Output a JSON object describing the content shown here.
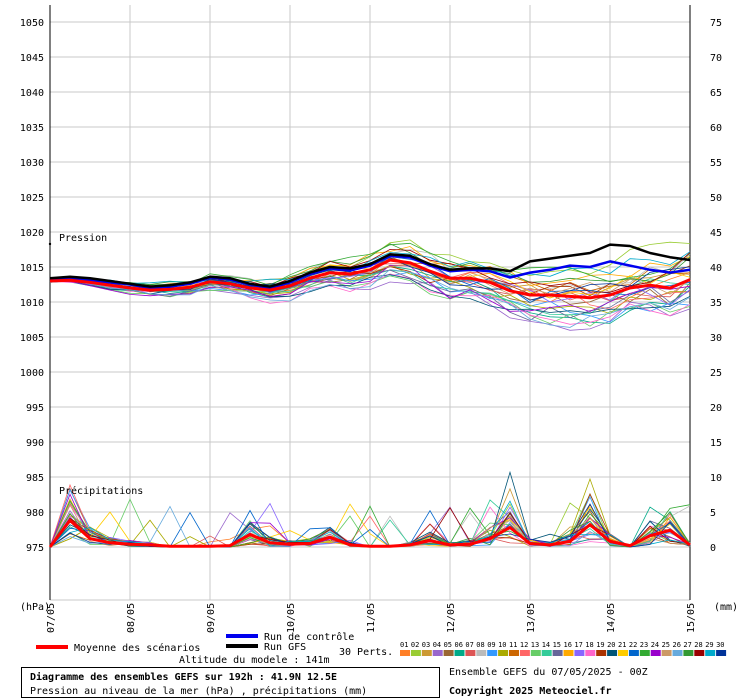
{
  "chart_data": {
    "type": "line",
    "left_axis": {
      "unit": "(hPa)",
      "ticks": [
        975,
        980,
        985,
        990,
        995,
        1000,
        1005,
        1010,
        1015,
        1020,
        1025,
        1030,
        1035,
        1040,
        1045,
        1050
      ],
      "range": [
        975,
        1050
      ]
    },
    "right_axis": {
      "unit": "(mm)",
      "ticks": [
        0,
        5,
        10,
        15,
        20,
        25,
        30,
        35,
        40,
        45,
        50,
        55,
        60,
        65,
        70,
        75
      ],
      "range": [
        0,
        75
      ]
    },
    "x_labels": [
      "07/05",
      "08/05",
      "09/05",
      "10/05",
      "11/05",
      "12/05",
      "13/05",
      "14/05",
      "15/05"
    ],
    "x_range_hours": [
      0,
      192
    ],
    "step_hours": 6,
    "grid": true,
    "label_pressure": "Pression",
    "label_precip": "Précipitations",
    "series": {
      "control": {
        "name": "Run de contrôle",
        "color": "#0000ee",
        "values": [
          1013.2,
          1013.4,
          1013.1,
          1012.8,
          1012.5,
          1012.0,
          1012.2,
          1012.6,
          1013.5,
          1013.2,
          1012.5,
          1012.0,
          1012.8,
          1014.0,
          1014.8,
          1014.5,
          1015.2,
          1016.6,
          1016.4,
          1015.2,
          1014.4,
          1014.6,
          1014.4,
          1013.5,
          1014.2,
          1014.6,
          1015.2,
          1015.0,
          1015.8,
          1015.2,
          1014.6,
          1014.2,
          1014.6
        ]
      },
      "gfs": {
        "name": "Run GFS",
        "color": "#000000",
        "values": [
          1013.4,
          1013.6,
          1013.4,
          1013.0,
          1012.6,
          1012.2,
          1012.4,
          1012.8,
          1013.6,
          1013.4,
          1012.6,
          1012.2,
          1013.0,
          1014.2,
          1015.0,
          1014.8,
          1015.4,
          1016.8,
          1016.6,
          1015.4,
          1014.6,
          1014.8,
          1014.8,
          1014.4,
          1015.8,
          1016.2,
          1016.6,
          1017.0,
          1018.2,
          1018.0,
          1017.0,
          1016.4,
          1016.0
        ]
      },
      "mean": {
        "name": "Moyenne des scénarios",
        "color": "#ff0000",
        "values": [
          1013.0,
          1013.1,
          1012.8,
          1012.4,
          1012.0,
          1011.7,
          1011.8,
          1012.1,
          1012.9,
          1012.6,
          1012.0,
          1011.7,
          1012.3,
          1013.4,
          1014.2,
          1014.0,
          1014.6,
          1016.0,
          1015.6,
          1014.4,
          1013.4,
          1013.4,
          1012.8,
          1011.6,
          1011.0,
          1011.0,
          1010.8,
          1010.6,
          1011.0,
          1012.0,
          1012.4,
          1012.0,
          1013.2
        ]
      },
      "precip_mean": {
        "color": "#ff0000",
        "values": [
          0,
          3.8,
          1.2,
          0.6,
          0.4,
          0.3,
          0.1,
          0.1,
          0.1,
          0.2,
          1.8,
          0.6,
          0.4,
          0.5,
          1.4,
          0.3,
          0.1,
          0.1,
          0.3,
          0.9,
          0.3,
          0.4,
          1.2,
          2.8,
          0.5,
          0.3,
          0.8,
          3.2,
          0.8,
          0.2,
          1.6,
          2.4,
          0.3
        ]
      }
    },
    "ensemble_count": 30
  },
  "legend": {
    "mean_label": "Moyenne des scénarios",
    "control_label": "Run de contrôle",
    "gfs_label": "Run GFS",
    "perts_label": "30 Perts.",
    "altitude": "Altitude du modele : 141m",
    "member_numbers": [
      "01",
      "02",
      "03",
      "04",
      "05",
      "06",
      "07",
      "08",
      "09",
      "10",
      "11",
      "12",
      "13",
      "14",
      "15",
      "16",
      "17",
      "18",
      "19",
      "20",
      "21",
      "22",
      "23",
      "24",
      "25",
      "26",
      "27",
      "28",
      "29",
      "30"
    ],
    "member_colors": [
      "#ff7f27",
      "#99cc33",
      "#cc9933",
      "#9966cc",
      "#996633",
      "#00aa88",
      "#dd5555",
      "#bbbbbb",
      "#3399ff",
      "#aaaa00",
      "#cc6600",
      "#ff6666",
      "#66cc66",
      "#33cc99",
      "#666699",
      "#ffaa00",
      "#8866ff",
      "#ff66cc",
      "#aa3300",
      "#005577",
      "#ffcc00",
      "#0066cc",
      "#33aa33",
      "#9900cc",
      "#cc9966",
      "#66aadd",
      "#339933",
      "#990000",
      "#00aacc",
      "#003399"
    ]
  },
  "info": {
    "title": "Diagramme des ensembles GEFS sur 192h : 41.9N 12.5E",
    "subtitle": "Pression au niveau de la mer (hPa) , précipitations (mm)",
    "run": "Ensemble GEFS du 07/05/2025 - 00Z",
    "copyright": "Copyright 2025 Meteociel.fr"
  }
}
